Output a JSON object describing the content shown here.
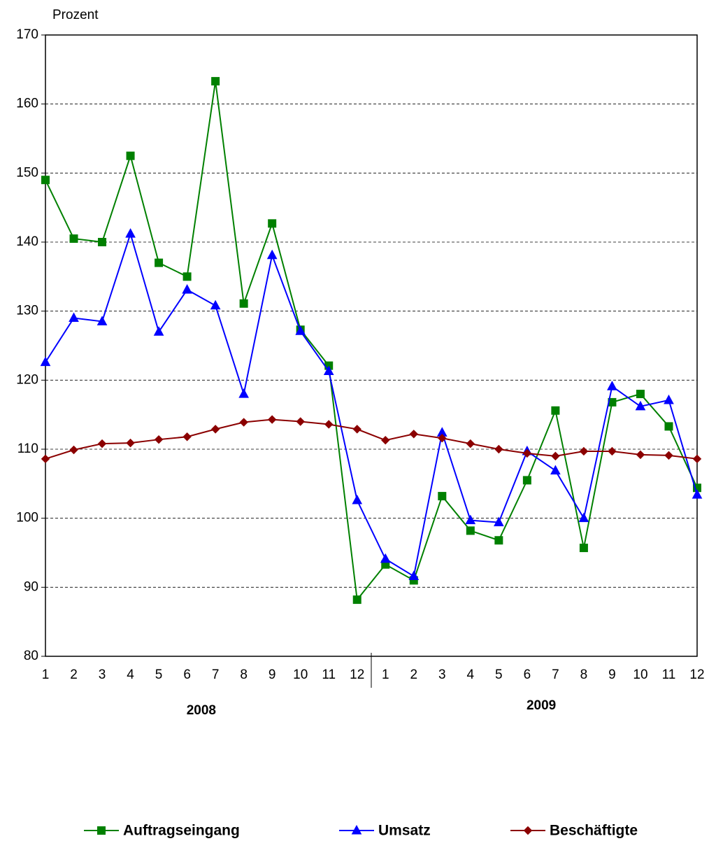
{
  "chart_data": {
    "type": "line",
    "y_label": "Prozent",
    "categories": [
      "1",
      "2",
      "3",
      "4",
      "5",
      "6",
      "7",
      "8",
      "9",
      "10",
      "11",
      "12",
      "1",
      "2",
      "3",
      "4",
      "5",
      "6",
      "7",
      "8",
      "9",
      "10",
      "11",
      "12"
    ],
    "x_groups": [
      "2008",
      "2009"
    ],
    "ylim": [
      80,
      170
    ],
    "yticks": [
      80,
      90,
      100,
      110,
      120,
      130,
      140,
      150,
      160,
      170
    ],
    "grid": true,
    "legend": "bottom",
    "series": [
      {
        "name": "Auftragseingang",
        "color": "#008000",
        "marker": "square",
        "values": [
          149,
          140.5,
          140,
          152.5,
          137,
          135,
          163.3,
          131.1,
          142.7,
          127.3,
          122.1,
          88.2,
          93.3,
          91.0,
          103.2,
          98.2,
          96.8,
          105.5,
          115.6,
          95.7,
          116.8,
          118,
          113.3,
          104.4
        ]
      },
      {
        "name": "Umsatz",
        "color": "#0000ff",
        "marker": "triangle",
        "values": [
          122.6,
          129,
          128.5,
          141.2,
          127,
          133.1,
          130.8,
          118,
          138.1,
          127.1,
          121.3,
          102.6,
          94.1,
          91.6,
          112.4,
          99.7,
          99.4,
          109.7,
          106.9,
          100,
          119.1,
          116.2,
          117.1,
          103.4
        ]
      },
      {
        "name": "Beschäftigte",
        "color": "#8b0000",
        "marker": "diamond",
        "values": [
          108.6,
          109.9,
          110.8,
          110.9,
          111.4,
          111.8,
          112.9,
          113.9,
          114.3,
          114,
          113.6,
          112.9,
          111.3,
          112.2,
          111.6,
          110.8,
          110,
          109.4,
          109,
          109.7,
          109.7,
          109.2,
          109.1,
          108.6
        ]
      }
    ]
  }
}
